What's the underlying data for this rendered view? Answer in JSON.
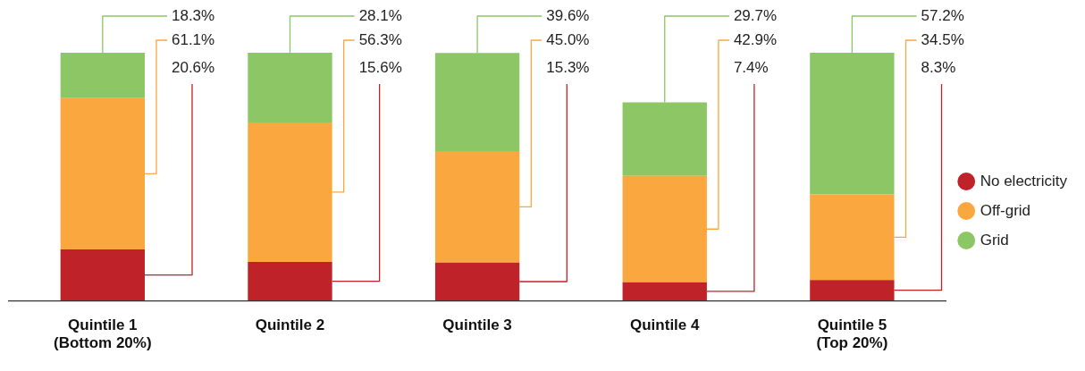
{
  "chart_data": {
    "type": "bar",
    "stacked": true,
    "categories": [
      "Quintile 1\n(Bottom 20%)",
      "Quintile 2",
      "Quintile 3",
      "Quintile 4",
      "Quintile 5\n(Top 20%)"
    ],
    "series": [
      {
        "name": "No electricity",
        "color": "#c0222a",
        "values": [
          20.6,
          15.6,
          15.3,
          7.4,
          8.3
        ],
        "value_labels": [
          "20.6%",
          "15.6%",
          "15.3%",
          "7.4%",
          "8.3%"
        ]
      },
      {
        "name": "Off-grid",
        "color": "#f9a73e",
        "values": [
          61.1,
          56.3,
          45.0,
          42.9,
          34.5
        ],
        "value_labels": [
          "61.1%",
          "56.3%",
          "45.0%",
          "42.9%",
          "34.5%"
        ]
      },
      {
        "name": "Grid",
        "color": "#8cc665",
        "values": [
          18.3,
          28.1,
          39.6,
          29.7,
          57.2
        ],
        "value_labels": [
          "18.3%",
          "28.1%",
          "39.6%",
          "29.7%",
          "57.2%"
        ]
      }
    ],
    "ylim": [
      0,
      100
    ],
    "grid": false,
    "legend": "right"
  }
}
